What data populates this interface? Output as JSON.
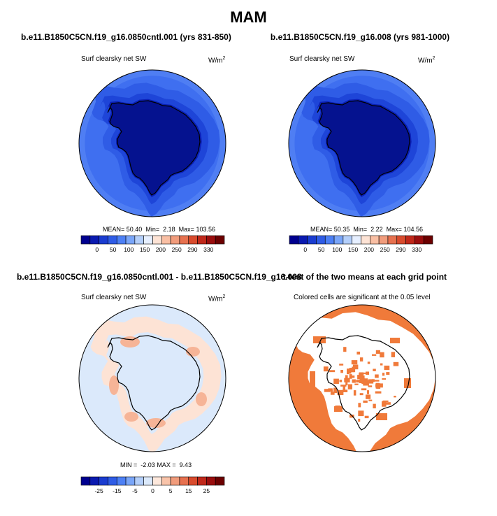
{
  "figure": {
    "title": "MAM"
  },
  "chart_data": [
    {
      "type": "heatmap",
      "title": "b.e11.B1850C5CN.f19_g16.0850cntl.001 (yrs 831-850)",
      "field": "Surf clearsky net SW",
      "units": "W/m",
      "units_exponent": "2",
      "projection": "south polar stereographic",
      "stats": {
        "mean_label": "MEAN=",
        "mean": "50.40",
        "min_label": "Min=",
        "min": "2.18",
        "max_label": "Max=",
        "max": "103.56"
      },
      "colorbar": {
        "tick_labels": [
          "0",
          "50",
          "100",
          "150",
          "200",
          "250",
          "290",
          "330"
        ],
        "colors": [
          "#00008f",
          "#0a1ab0",
          "#1a3cd0",
          "#2f5ce6",
          "#4d80f5",
          "#7aa6f9",
          "#b4cffa",
          "#e6efff",
          "#fde3d5",
          "#f9bfa4",
          "#f19c7c",
          "#e7714f",
          "#d94b2d",
          "#c0281a",
          "#9a0d0d",
          "#6c0000"
        ]
      },
      "region_values_wm2": {
        "interior": 10,
        "coast": 30,
        "inner_ring": 55,
        "middle_ring": 75,
        "outer_ring": 95,
        "edge": 103
      }
    },
    {
      "type": "heatmap",
      "title": "b.e11.B1850C5CN.f19_g16.008 (yrs 981-1000)",
      "field": "Surf clearsky net SW",
      "units": "W/m",
      "units_exponent": "2",
      "projection": "south polar stereographic",
      "stats": {
        "mean_label": "MEAN=",
        "mean": "50.35",
        "min_label": "Min=",
        "min": "2.22",
        "max_label": "Max=",
        "max": "104.56"
      },
      "colorbar": {
        "tick_labels": [
          "0",
          "50",
          "100",
          "150",
          "200",
          "250",
          "290",
          "330"
        ],
        "colors": [
          "#00008f",
          "#0a1ab0",
          "#1a3cd0",
          "#2f5ce6",
          "#4d80f5",
          "#7aa6f9",
          "#b4cffa",
          "#e6efff",
          "#fde3d5",
          "#f9bfa4",
          "#f19c7c",
          "#e7714f",
          "#d94b2d",
          "#c0281a",
          "#9a0d0d",
          "#6c0000"
        ]
      },
      "region_values_wm2": {
        "interior": 10,
        "coast": 30,
        "inner_ring": 55,
        "middle_ring": 75,
        "outer_ring": 96,
        "edge": 104
      }
    },
    {
      "type": "heatmap",
      "title": "b.e11.B1850C5CN.f19_g16.0850cntl.001 - b.e11.B1850C5CN.f19_g16.008",
      "field": "Surf clearsky net SW",
      "units": "W/m",
      "units_exponent": "2",
      "projection": "south polar stereographic",
      "stats": {
        "min_label": "MIN =",
        "min": "-2.03",
        "max_label": "MAX =",
        "max": "9.43"
      },
      "colorbar": {
        "tick_labels": [
          "-25",
          "-15",
          "-5",
          "0",
          "5",
          "15",
          "25"
        ],
        "colors": [
          "#00008f",
          "#0a1ab0",
          "#1a3cd0",
          "#2f5ce6",
          "#4d80f5",
          "#7aa6f9",
          "#b4cffa",
          "#dbe9fb",
          "#fde8dc",
          "#f9c4aa",
          "#f19c7c",
          "#e7714f",
          "#d94b2d",
          "#c0281a",
          "#9a0d0d",
          "#6c0000"
        ]
      },
      "region_values_wm2": {
        "background": 0,
        "coastal_belt": 3,
        "hotspots": 6
      }
    },
    {
      "type": "heatmap",
      "title": "t-test of the two means at each grid point",
      "field": "Colored cells are significant at the 0.05 level",
      "projection": "south polar stereographic",
      "significance_color": "#f07a3a"
    }
  ]
}
